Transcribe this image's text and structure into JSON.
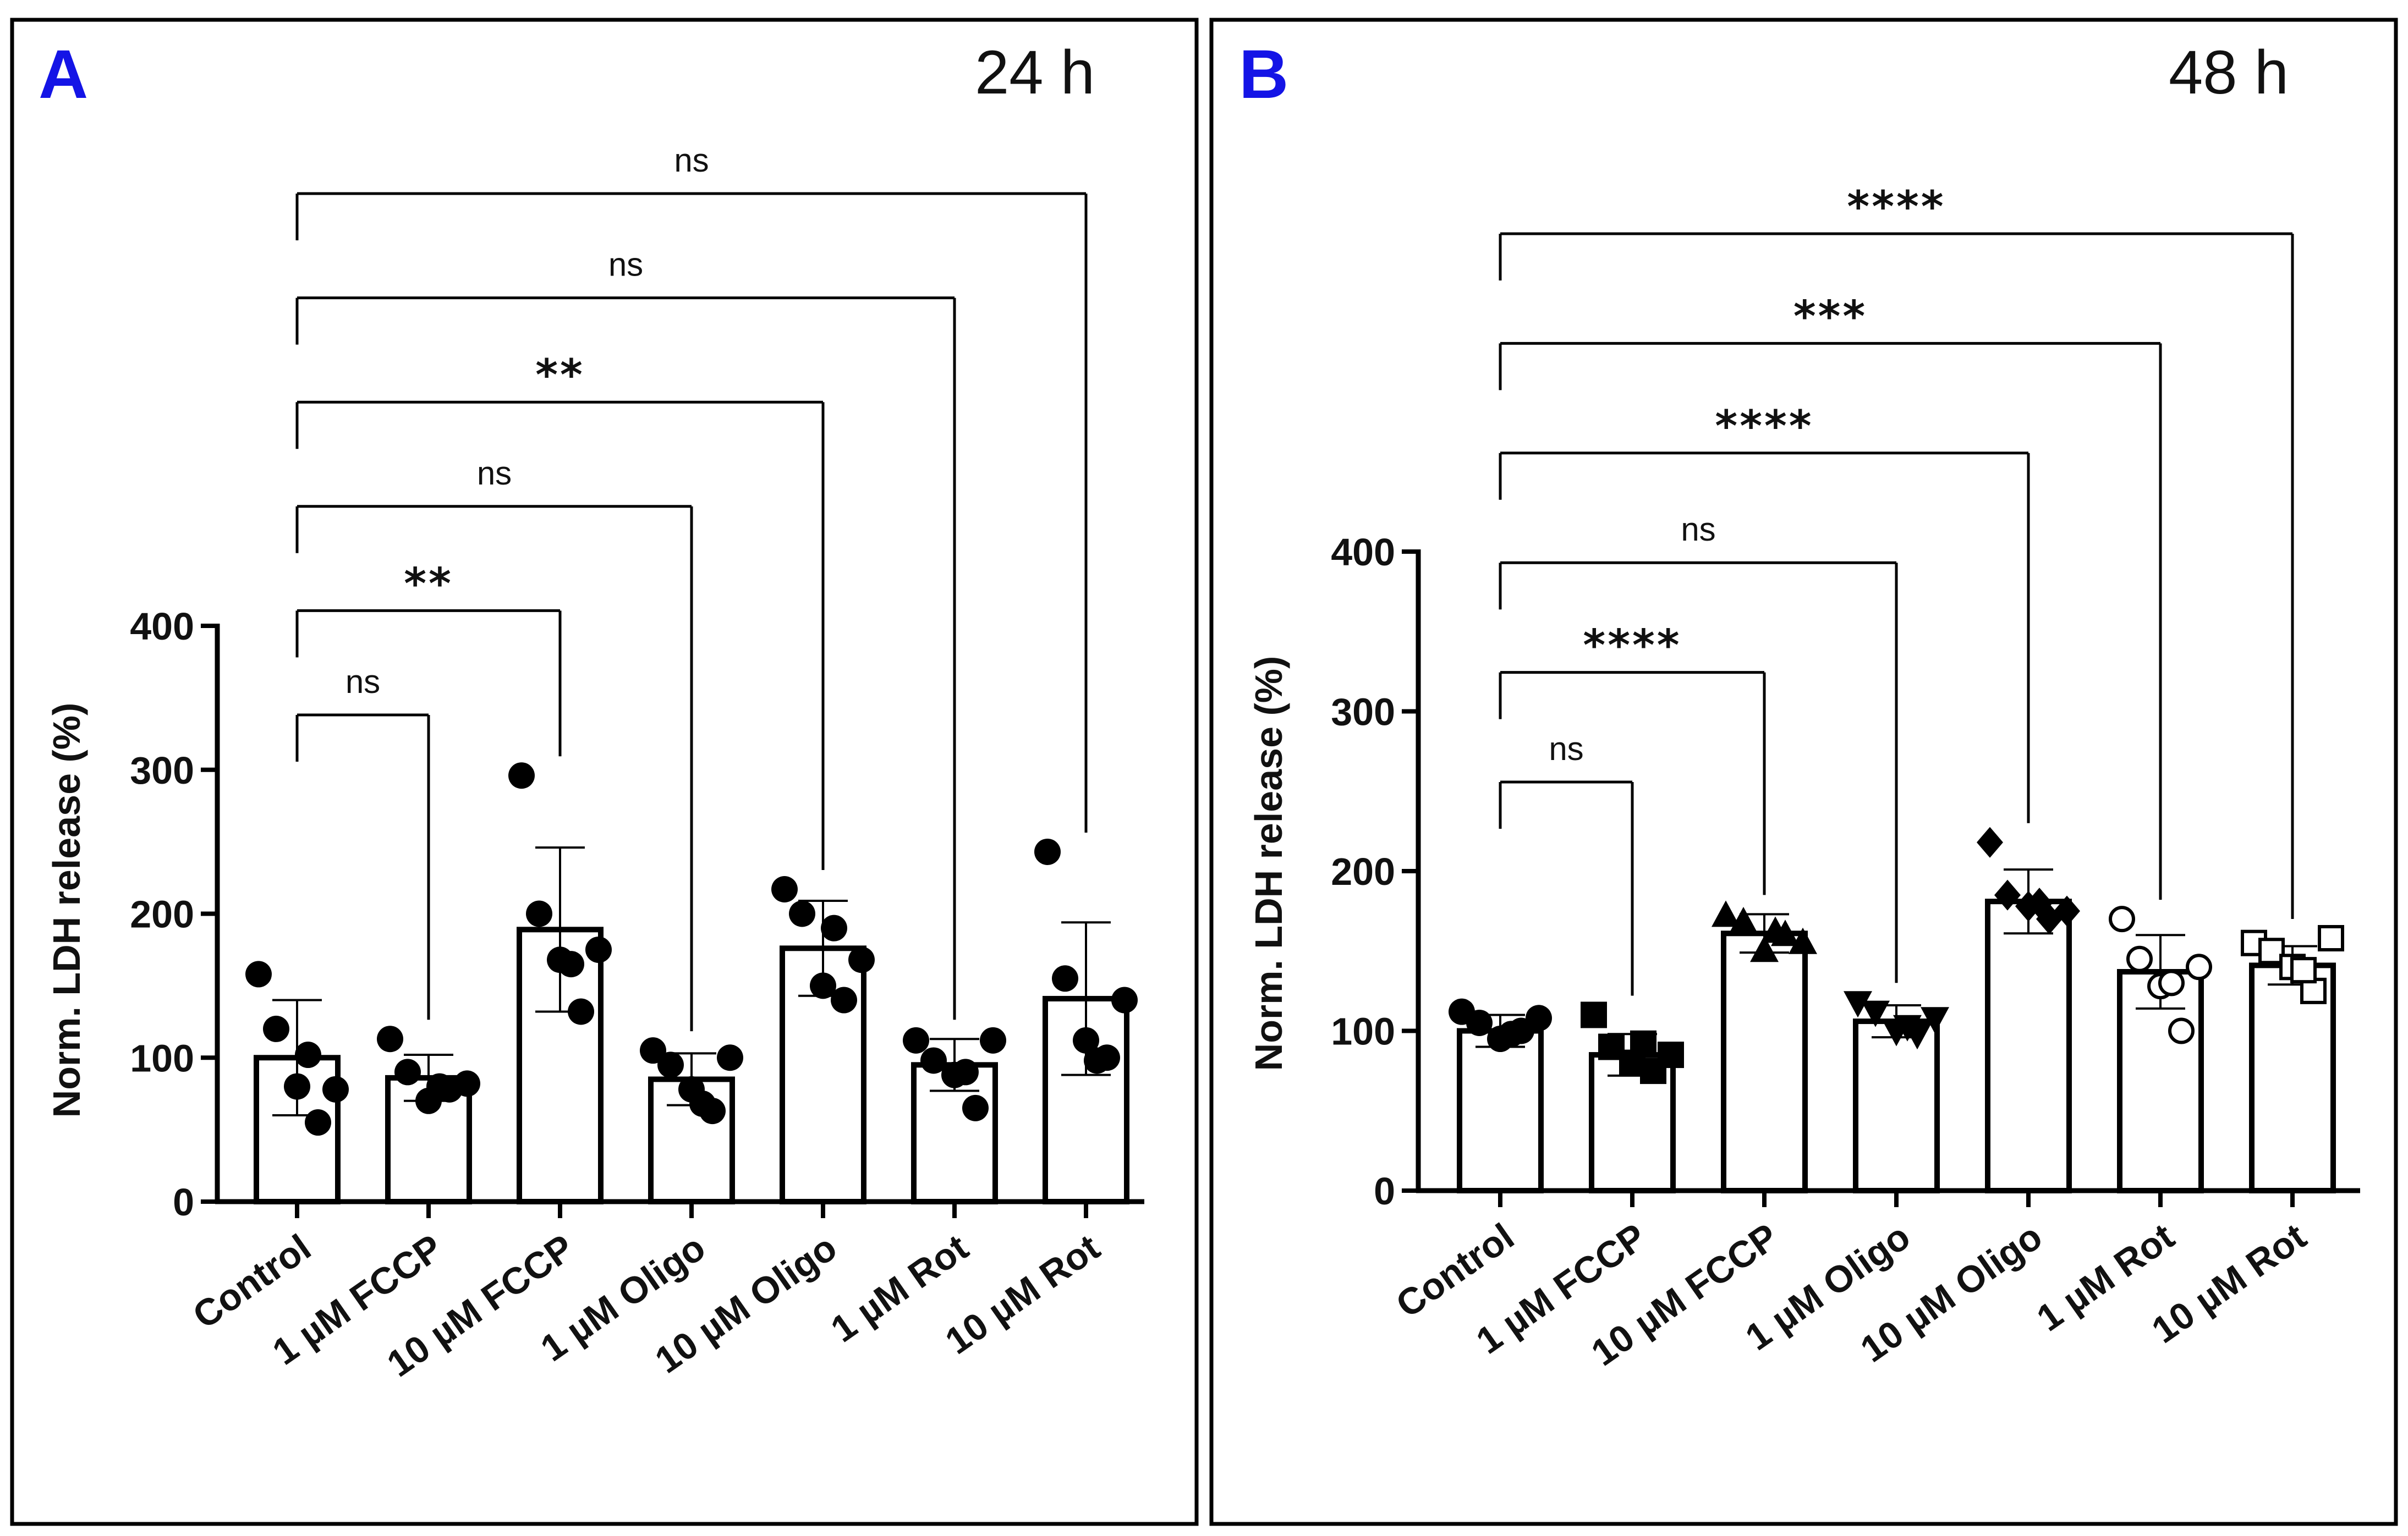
{
  "chart_data": [
    {
      "type": "bar",
      "panel": "A",
      "timepoint": "24 h",
      "ylabel": "Norm. LDH release  (%)",
      "ylim": [
        0,
        400
      ],
      "yticks": [
        "0",
        "100",
        "200",
        "300",
        "400"
      ],
      "categories": [
        "Control",
        "1 µM FCCP",
        "10 µM FCCP",
        "1 µM Oligo",
        "10 µM Oligo",
        "1 µM Rot",
        "10 µM Rot"
      ],
      "values": [
        100,
        86,
        189,
        85,
        176,
        95,
        141
      ],
      "sd": [
        40,
        16,
        57,
        18,
        33,
        18,
        53
      ],
      "markers": [
        "circle",
        "circle",
        "circle",
        "circle",
        "circle",
        "circle",
        "circle"
      ],
      "points": [
        [
          158,
          120,
          80,
          55,
          78,
          102
        ],
        [
          113,
          90,
          70,
          78,
          82,
          80
        ],
        [
          296,
          200,
          168,
          132,
          175,
          165
        ],
        [
          105,
          95,
          78,
          63,
          100,
          68
        ],
        [
          217,
          200,
          150,
          140,
          168,
          190
        ],
        [
          112,
          98,
          88,
          65,
          112,
          90
        ],
        [
          243,
          155,
          112,
          100,
          140,
          98
        ]
      ],
      "comparisons": [
        {
          "label": "ns",
          "to": 1
        },
        {
          "label": "**",
          "to": 2
        },
        {
          "label": "ns",
          "to": 3
        },
        {
          "label": "**",
          "to": 4
        },
        {
          "label": "ns",
          "to": 5
        },
        {
          "label": "ns",
          "to": 6
        }
      ]
    },
    {
      "type": "bar",
      "panel": "B",
      "timepoint": "48 h",
      "ylabel": "Norm. LDH release (%)",
      "ylim": [
        0,
        400
      ],
      "yticks": [
        "0",
        "100",
        "200",
        "300",
        "400"
      ],
      "categories": [
        "Control",
        "1 µM FCCP",
        "10 µM FCCP",
        "1 µM Oligo",
        "10 µM Oligo",
        "1 µM Rot",
        "10 µM Rot"
      ],
      "values": [
        100,
        85,
        161,
        106,
        181,
        137,
        141
      ],
      "sd": [
        10,
        13,
        12,
        10,
        20,
        23,
        12
      ],
      "markers": [
        "circle",
        "square",
        "triangle-up",
        "triangle-down",
        "diamond",
        "circle-open",
        "square-open"
      ],
      "points": [
        [
          112,
          105,
          95,
          100,
          108,
          98
        ],
        [
          110,
          90,
          80,
          75,
          85,
          92
        ],
        [
          172,
          168,
          150,
          160,
          155,
          162
        ],
        [
          118,
          112,
          100,
          98,
          108,
          103
        ],
        [
          218,
          185,
          178,
          170,
          175,
          180
        ],
        [
          170,
          145,
          128,
          100,
          140,
          130
        ],
        [
          155,
          150,
          140,
          125,
          158,
          138
        ]
      ],
      "comparisons": [
        {
          "label": "ns",
          "to": 1
        },
        {
          "label": "****",
          "to": 2
        },
        {
          "label": "ns",
          "to": 3
        },
        {
          "label": "****",
          "to": 4
        },
        {
          "label": "***",
          "to": 5
        },
        {
          "label": "****",
          "to": 6
        }
      ]
    }
  ],
  "colors": {
    "panel_letter": "#1414e6",
    "ink": "#000000"
  }
}
